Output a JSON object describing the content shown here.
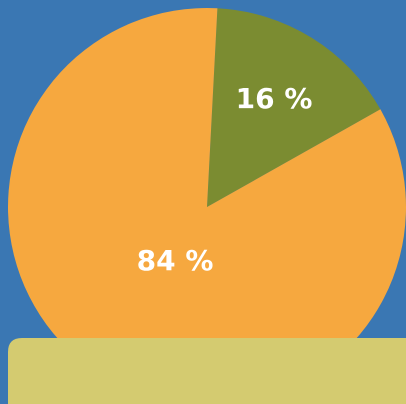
{
  "chart_data": {
    "type": "pie",
    "values": [
      16,
      84
    ],
    "value_labels": [
      "16 %",
      "84 %"
    ],
    "colors": [
      "#7b8c31",
      "#f6a83f"
    ]
  }
}
